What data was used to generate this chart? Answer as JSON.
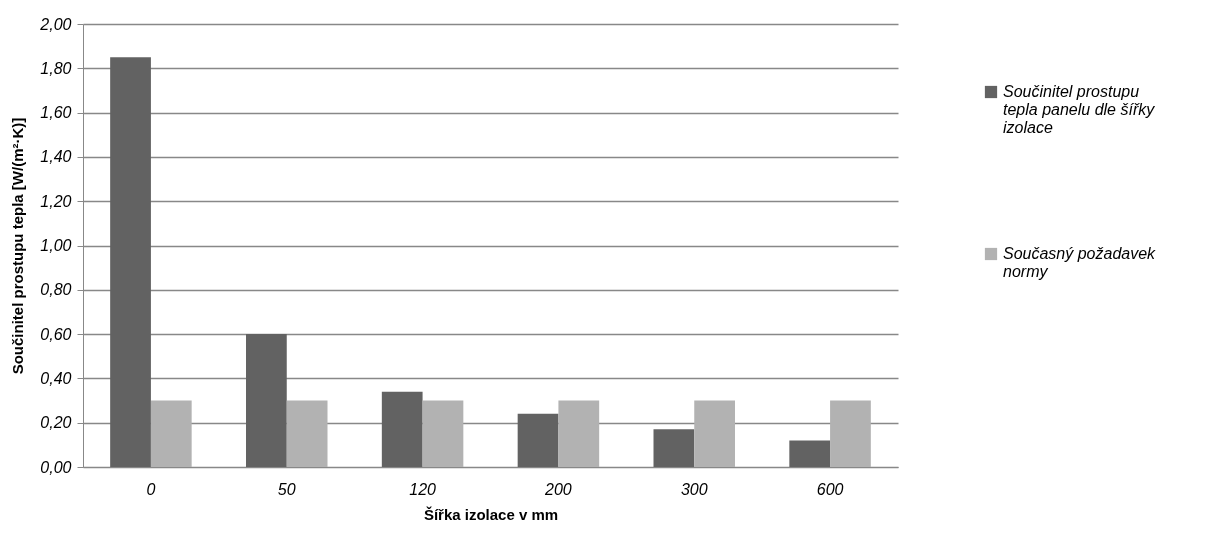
{
  "chart_data": {
    "type": "bar",
    "xlabel": "Šířka izolace  v mm",
    "ylabel": "Součinitel prostupu tepla [W/(m²·K)]",
    "categories": [
      "0",
      "50",
      "120",
      "200",
      "300",
      "600"
    ],
    "series": [
      {
        "name": "Součinitel prostupu tepla panelu dle šířky izolace",
        "color": "#626262",
        "values": [
          1.85,
          0.6,
          0.34,
          0.24,
          0.17,
          0.12
        ]
      },
      {
        "name": "Současný požadavek normy",
        "color": "#b2b2b2",
        "values": [
          0.3,
          0.3,
          0.3,
          0.3,
          0.3,
          0.3
        ]
      }
    ],
    "ylim": [
      0,
      2
    ],
    "yticks": [
      {
        "value": 0,
        "label": "0,00"
      },
      {
        "value": 0.2,
        "label": "0,20"
      },
      {
        "value": 0.4,
        "label": "0,40"
      },
      {
        "value": 0.6,
        "label": "0,60"
      },
      {
        "value": 0.8,
        "label": "0,80"
      },
      {
        "value": 1,
        "label": "1,00"
      },
      {
        "value": 1.2,
        "label": "1,20"
      },
      {
        "value": 1.4,
        "label": "1,40"
      },
      {
        "value": 1.6,
        "label": "1,60"
      },
      {
        "value": 1.8,
        "label": "1,80"
      },
      {
        "value": 2,
        "label": "2,00"
      }
    ],
    "grid": "y",
    "legend": "right"
  }
}
